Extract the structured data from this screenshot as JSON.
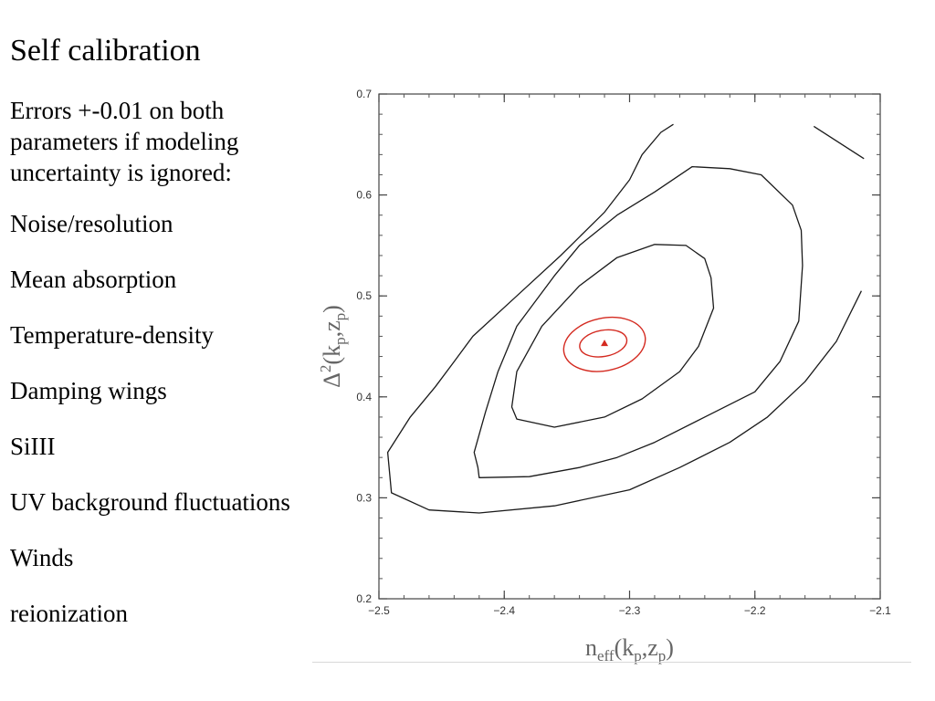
{
  "slide": {
    "title": "Self calibration",
    "intro": "Errors +-0.01 on both parameters if modeling uncertainty is ignored:",
    "items": [
      "Noise/resolution",
      "Mean absorption",
      "Temperature-density",
      "Damping wings",
      "SiIII",
      "UV background fluctuations",
      "Winds",
      "reionization"
    ]
  },
  "chart_data": {
    "type": "contour",
    "title": "",
    "xlabel": "n_eff(k_p, z_p)",
    "ylabel": "Δ²(k_p, z_p)",
    "xlim": [
      -2.5,
      -2.1
    ],
    "ylim": [
      0.2,
      0.7
    ],
    "xticks": [
      -2.5,
      -2.4,
      -2.3,
      -2.2,
      -2.1
    ],
    "xtick_labels": [
      "−2.5",
      "−2.4",
      "−2.3",
      "−2.2",
      "−2.1"
    ],
    "yticks": [
      0.2,
      0.3,
      0.4,
      0.5,
      0.6,
      0.7
    ],
    "ytick_labels": [
      "0.2",
      "0.3",
      "0.4",
      "0.5",
      "0.6",
      "0.7"
    ],
    "grid": false,
    "best_fit": {
      "x": -2.32,
      "y": 0.453,
      "marker": "triangle",
      "color": "#d42a20"
    },
    "contours": [
      {
        "name": "",
        "color": "#1a1a1a",
        "closed": true,
        "points": [
          [
            -2.39,
            0.378
          ],
          [
            -2.36,
            0.37
          ],
          [
            -2.32,
            0.38
          ],
          [
            -2.29,
            0.398
          ],
          [
            -2.26,
            0.425
          ],
          [
            -2.245,
            0.45
          ],
          [
            -2.233,
            0.488
          ],
          [
            -2.235,
            0.518
          ],
          [
            -2.24,
            0.537
          ],
          [
            -2.255,
            0.55
          ],
          [
            -2.28,
            0.551
          ],
          [
            -2.31,
            0.538
          ],
          [
            -2.34,
            0.51
          ],
          [
            -2.37,
            0.47
          ],
          [
            -2.39,
            0.425
          ],
          [
            -2.394,
            0.39
          ]
        ]
      },
      {
        "name": "",
        "color": "#1a1a1a",
        "closed": true,
        "points": [
          [
            -2.42,
            0.32
          ],
          [
            -2.38,
            0.321
          ],
          [
            -2.34,
            0.33
          ],
          [
            -2.31,
            0.34
          ],
          [
            -2.28,
            0.355
          ],
          [
            -2.24,
            0.38
          ],
          [
            -2.2,
            0.405
          ],
          [
            -2.18,
            0.435
          ],
          [
            -2.165,
            0.475
          ],
          [
            -2.162,
            0.53
          ],
          [
            -2.163,
            0.565
          ],
          [
            -2.17,
            0.59
          ],
          [
            -2.195,
            0.62
          ],
          [
            -2.22,
            0.626
          ],
          [
            -2.25,
            0.628
          ],
          [
            -2.28,
            0.603
          ],
          [
            -2.31,
            0.58
          ],
          [
            -2.34,
            0.55
          ],
          [
            -2.36,
            0.52
          ],
          [
            -2.39,
            0.47
          ],
          [
            -2.405,
            0.425
          ],
          [
            -2.415,
            0.385
          ],
          [
            -2.424,
            0.345
          ],
          [
            -2.421,
            0.33
          ]
        ]
      },
      {
        "name": "",
        "color": "#1a1a1a",
        "closed": false,
        "points": [
          [
            -2.115,
            0.505
          ],
          [
            -2.135,
            0.455
          ],
          [
            -2.16,
            0.415
          ],
          [
            -2.19,
            0.38
          ],
          [
            -2.22,
            0.355
          ],
          [
            -2.26,
            0.33
          ],
          [
            -2.3,
            0.308
          ],
          [
            -2.36,
            0.292
          ],
          [
            -2.42,
            0.285
          ],
          [
            -2.46,
            0.288
          ],
          [
            -2.49,
            0.305
          ],
          [
            -2.493,
            0.345
          ],
          [
            -2.475,
            0.38
          ],
          [
            -2.455,
            0.41
          ],
          [
            -2.44,
            0.435
          ],
          [
            -2.425,
            0.46
          ],
          [
            -2.39,
            0.5
          ],
          [
            -2.355,
            0.54
          ],
          [
            -2.32,
            0.583
          ],
          [
            -2.3,
            0.615
          ],
          [
            -2.29,
            0.64
          ],
          [
            -2.275,
            0.662
          ],
          [
            -2.265,
            0.67
          ]
        ]
      },
      {
        "name": "",
        "color": "#1a1a1a",
        "closed": false,
        "points": [
          [
            -2.153,
            0.668
          ],
          [
            -2.113,
            0.636
          ]
        ]
      },
      {
        "name": "",
        "color": "#d42a20",
        "closed": true,
        "ellipse": {
          "cx": -2.321,
          "cy": 0.453,
          "rx": 0.019,
          "ry": 0.013,
          "angle": -10
        }
      },
      {
        "name": "",
        "color": "#d42a20",
        "closed": true,
        "ellipse": {
          "cx": -2.32,
          "cy": 0.452,
          "rx": 0.033,
          "ry": 0.026,
          "angle": -12
        }
      }
    ]
  }
}
